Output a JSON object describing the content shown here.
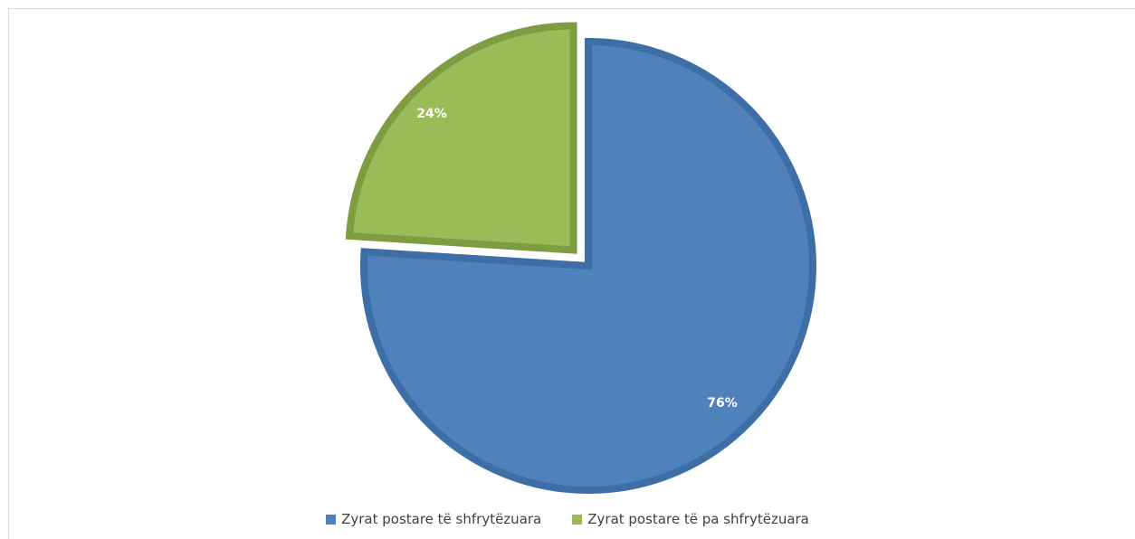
{
  "chart_data": {
    "type": "pie",
    "title": "",
    "exploded": true,
    "slices": [
      {
        "label": "Zyrat postare të shfrytëzuara",
        "value": 76,
        "data_label": "76%",
        "color": "#4f81bd",
        "border_color": "#3d6ea6"
      },
      {
        "label": "Zyrat postare të pa shfrytëzuara",
        "value": 24,
        "data_label": "24%",
        "color": "#9bbb59",
        "border_color": "#7e9c41"
      }
    ],
    "legend_position": "bottom"
  }
}
